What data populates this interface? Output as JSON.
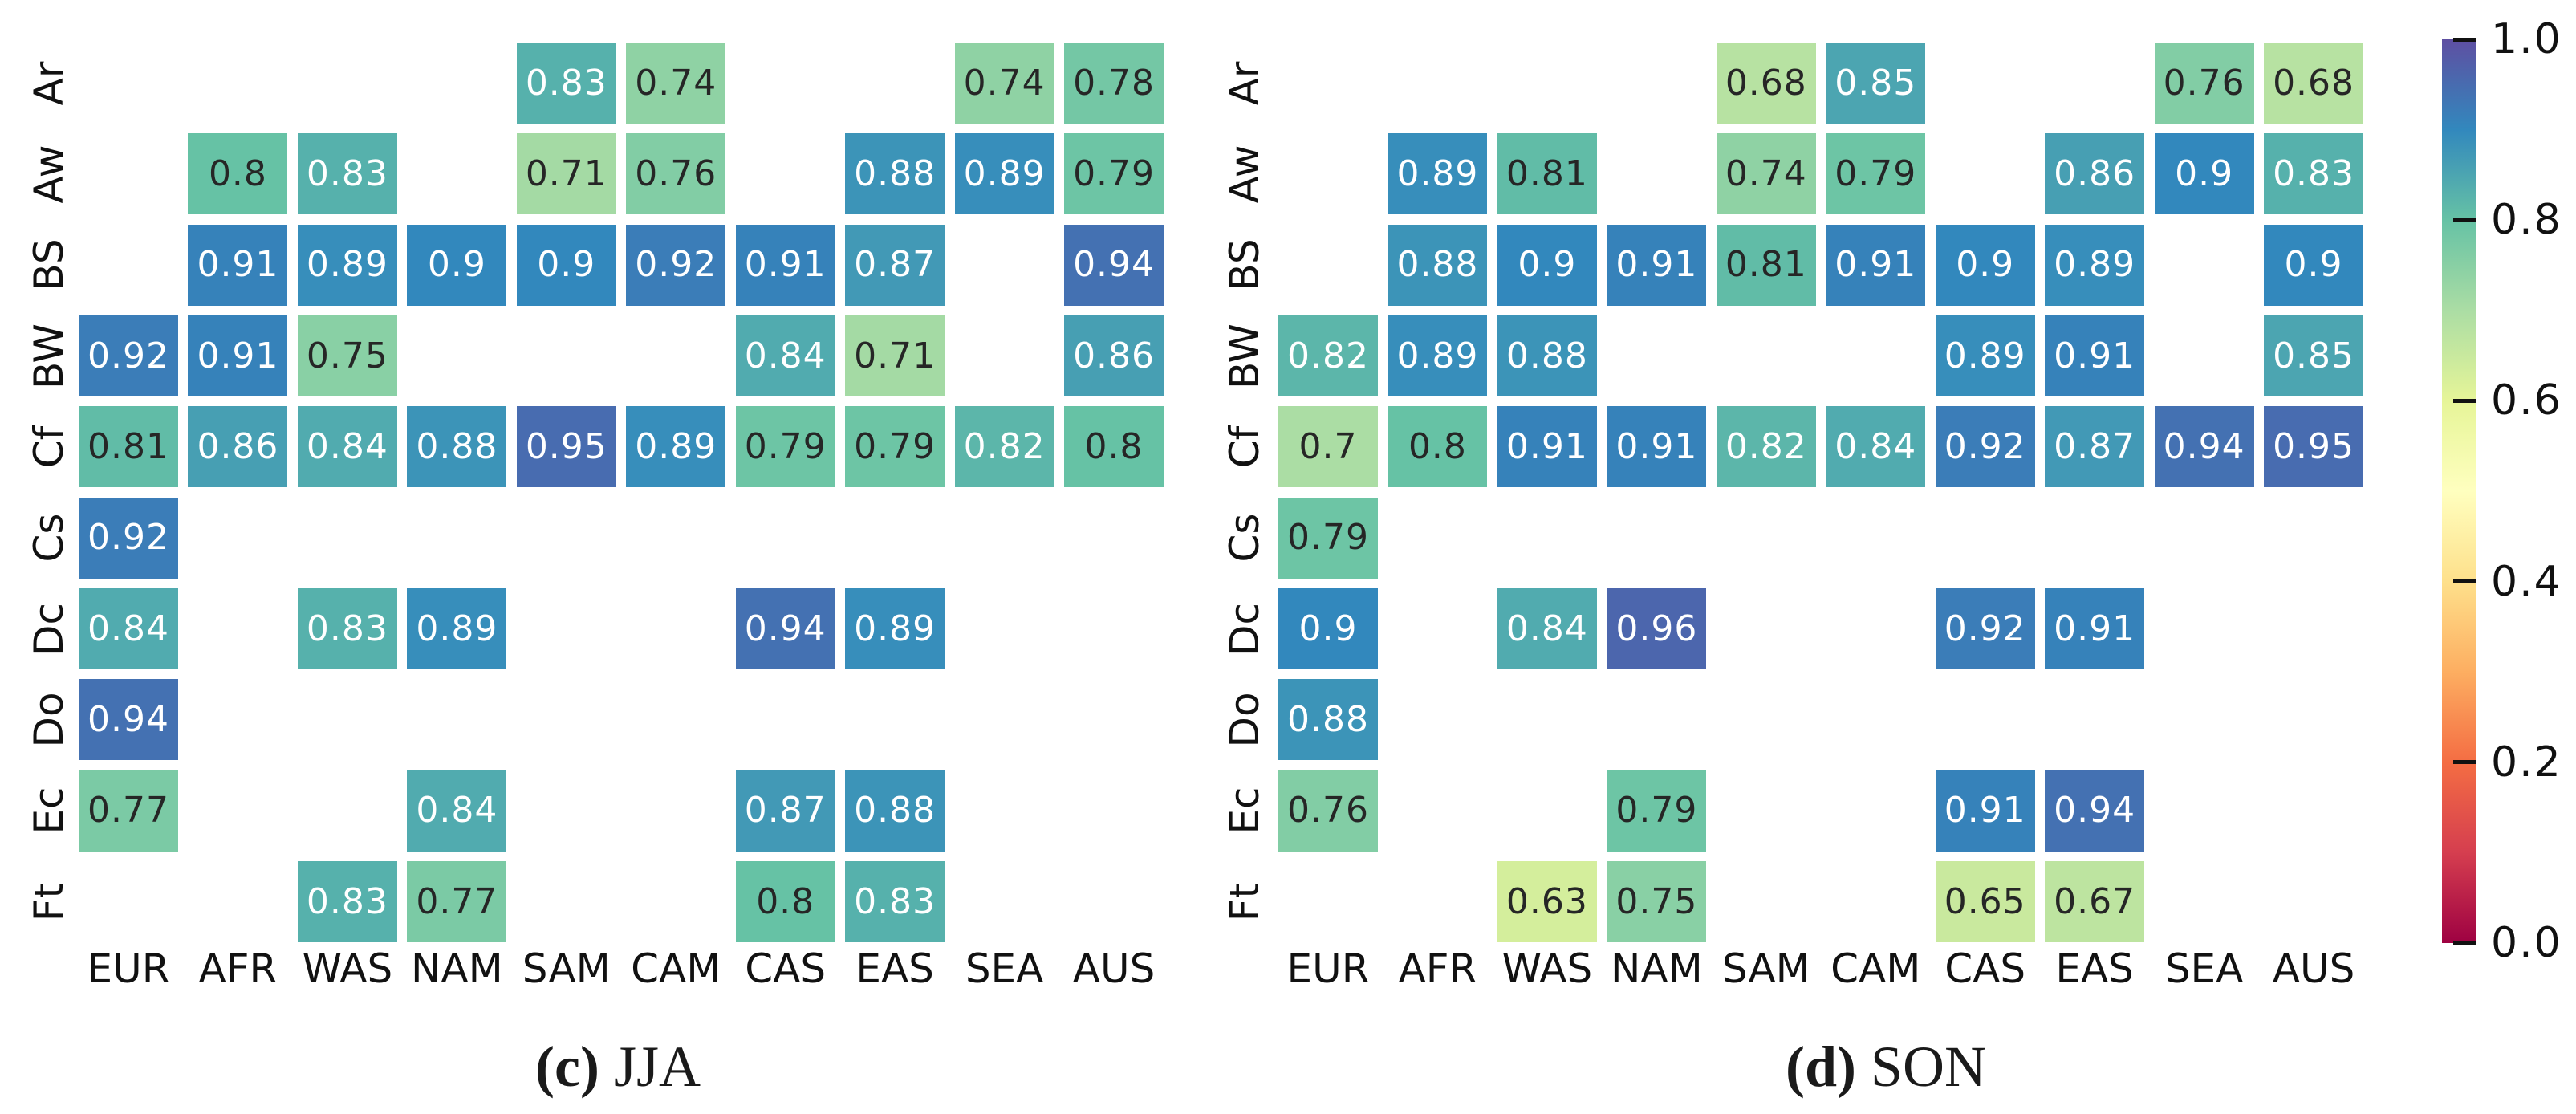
{
  "figure": {
    "description": "Two annotated heatmaps of scores (0-1) by Koppen climate class and world region, with shared Spectral colorbar",
    "background": "#ffffff"
  },
  "colorbar": {
    "ticks": [
      "1.0",
      "0.8",
      "0.6",
      "0.4",
      "0.2",
      "0.0"
    ],
    "min": 0.0,
    "max": 1.0,
    "orientation": "vertical",
    "stops": [
      "#9e0142",
      "#d53e4f",
      "#f46d43",
      "#fdae61",
      "#fee08b",
      "#ffffbf",
      "#e6f598",
      "#abdda4",
      "#66c2a5",
      "#3288bd",
      "#5e4fa2"
    ],
    "annot_dark_text": "#262626",
    "annot_light_text": "#ffffff",
    "light_text_threshold": 0.82
  },
  "chart_data": [
    {
      "type": "heatmap",
      "caption_label": "(c)",
      "caption_text": "JJA",
      "columns": [
        "EUR",
        "AFR",
        "WAS",
        "NAM",
        "SAM",
        "CAM",
        "CAS",
        "EAS",
        "SEA",
        "AUS"
      ],
      "rows": [
        "Ar",
        "Aw",
        "BS",
        "BW",
        "Cf",
        "Cs",
        "Dc",
        "Do",
        "Ec",
        "Ft"
      ],
      "values": [
        [
          null,
          null,
          null,
          null,
          0.83,
          0.74,
          null,
          null,
          0.74,
          0.78
        ],
        [
          null,
          0.8,
          0.83,
          null,
          0.71,
          0.76,
          null,
          0.88,
          0.89,
          0.79
        ],
        [
          null,
          0.91,
          0.89,
          0.9,
          0.9,
          0.92,
          0.91,
          0.87,
          null,
          0.94
        ],
        [
          0.92,
          0.91,
          0.75,
          null,
          null,
          null,
          0.84,
          0.71,
          null,
          0.86
        ],
        [
          0.81,
          0.86,
          0.84,
          0.88,
          0.95,
          0.89,
          0.79,
          0.79,
          0.82,
          0.8
        ],
        [
          0.92,
          null,
          null,
          null,
          null,
          null,
          null,
          null,
          null,
          null
        ],
        [
          0.84,
          null,
          0.83,
          0.89,
          null,
          null,
          0.94,
          0.89,
          null,
          null
        ],
        [
          0.94,
          null,
          null,
          null,
          null,
          null,
          null,
          null,
          null,
          null
        ],
        [
          0.77,
          null,
          null,
          0.84,
          null,
          null,
          0.87,
          0.88,
          null,
          null
        ],
        [
          null,
          null,
          0.83,
          0.77,
          null,
          null,
          0.8,
          0.83,
          null,
          null
        ]
      ]
    },
    {
      "type": "heatmap",
      "caption_label": "(d)",
      "caption_text": "SON",
      "columns": [
        "EUR",
        "AFR",
        "WAS",
        "NAM",
        "SAM",
        "CAM",
        "CAS",
        "EAS",
        "SEA",
        "AUS"
      ],
      "rows": [
        "Ar",
        "Aw",
        "BS",
        "BW",
        "Cf",
        "Cs",
        "Dc",
        "Do",
        "Ec",
        "Ft"
      ],
      "values": [
        [
          null,
          null,
          null,
          null,
          0.68,
          0.85,
          null,
          null,
          0.76,
          0.68
        ],
        [
          null,
          0.89,
          0.81,
          null,
          0.74,
          0.79,
          null,
          0.86,
          0.9,
          0.83
        ],
        [
          null,
          0.88,
          0.9,
          0.91,
          0.81,
          0.91,
          0.9,
          0.89,
          null,
          0.9
        ],
        [
          0.82,
          0.89,
          0.88,
          null,
          null,
          null,
          0.89,
          0.91,
          null,
          0.85
        ],
        [
          0.7,
          0.8,
          0.91,
          0.91,
          0.82,
          0.84,
          0.92,
          0.87,
          0.94,
          0.95
        ],
        [
          0.79,
          null,
          null,
          null,
          null,
          null,
          null,
          null,
          null,
          null
        ],
        [
          0.9,
          null,
          0.84,
          0.96,
          null,
          null,
          0.92,
          0.91,
          null,
          null
        ],
        [
          0.88,
          null,
          null,
          null,
          null,
          null,
          null,
          null,
          null,
          null
        ],
        [
          0.76,
          null,
          null,
          0.79,
          null,
          null,
          0.91,
          0.94,
          null,
          null
        ],
        [
          null,
          null,
          0.63,
          0.75,
          null,
          null,
          0.65,
          0.67,
          null,
          null
        ]
      ]
    }
  ]
}
